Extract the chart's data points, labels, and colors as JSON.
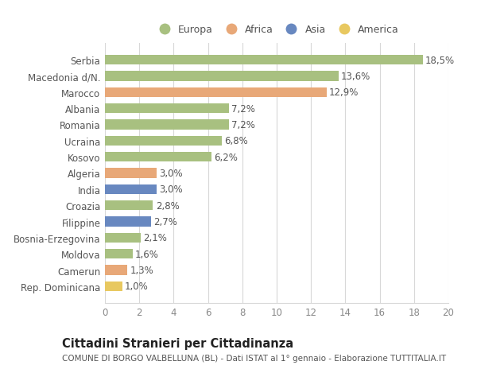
{
  "labels": [
    "Rep. Dominicana",
    "Camerun",
    "Moldova",
    "Bosnia-Erzegovina",
    "Filippine",
    "Croazia",
    "India",
    "Algeria",
    "Kosovo",
    "Ucraina",
    "Romania",
    "Albania",
    "Marocco",
    "Macedonia d/N.",
    "Serbia"
  ],
  "values": [
    1.0,
    1.3,
    1.6,
    2.1,
    2.7,
    2.8,
    3.0,
    3.0,
    6.2,
    6.8,
    7.2,
    7.2,
    12.9,
    13.6,
    18.5
  ],
  "continents": [
    "America",
    "Africa",
    "Europa",
    "Europa",
    "Asia",
    "Europa",
    "Asia",
    "Africa",
    "Europa",
    "Europa",
    "Europa",
    "Europa",
    "Africa",
    "Europa",
    "Europa"
  ],
  "value_labels": [
    "1,0%",
    "1,3%",
    "1,6%",
    "2,1%",
    "2,7%",
    "2,8%",
    "3,0%",
    "3,0%",
    "6,2%",
    "6,8%",
    "7,2%",
    "7,2%",
    "12,9%",
    "13,6%",
    "18,5%"
  ],
  "colors": {
    "Europa": "#a8c080",
    "Africa": "#e8a878",
    "Asia": "#6888c0",
    "America": "#e8c860"
  },
  "legend_order": [
    "Europa",
    "Africa",
    "Asia",
    "America"
  ],
  "xlim": [
    0,
    20
  ],
  "xticks": [
    0,
    2,
    4,
    6,
    8,
    10,
    12,
    14,
    16,
    18,
    20
  ],
  "title": "Cittadini Stranieri per Cittadinanza",
  "subtitle": "COMUNE DI BORGO VALBELLUNA (BL) - Dati ISTAT al 1° gennaio - Elaborazione TUTTITALIA.IT",
  "bg_color": "#ffffff",
  "grid_color": "#d8d8d8",
  "bar_height": 0.6,
  "value_fontsize": 8.5,
  "label_fontsize": 8.5,
  "title_fontsize": 10.5,
  "subtitle_fontsize": 7.5
}
